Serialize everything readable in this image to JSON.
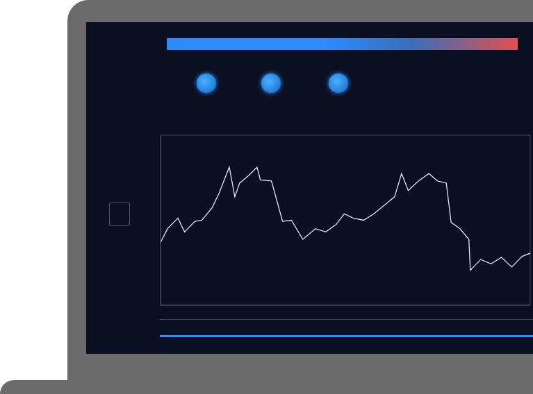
{
  "chart_data": {
    "type": "line",
    "x": [
      0,
      1.9,
      4.7,
      6.5,
      9.3,
      11.2,
      14,
      15.8,
      18.6,
      20.1,
      21.4,
      23.8,
      26.1,
      27,
      30,
      33,
      35.4,
      38.5,
      41.9,
      44.7,
      47.5,
      49.7,
      52.1,
      54.9,
      57.7,
      60.5,
      63.3,
      65.2,
      67,
      69.8,
      72.6,
      74.9,
      77.3,
      78.6,
      81,
      83.4,
      83.8,
      86.6,
      89.4,
      92.2,
      95,
      97.8,
      100
    ],
    "values": [
      2.96,
      3.6,
      4.1,
      3.45,
      3.95,
      4.0,
      4.6,
      5.26,
      6.5,
      5.1,
      5.75,
      6.1,
      6.5,
      5.9,
      5.85,
      3.95,
      4.0,
      3.1,
      3.6,
      3.45,
      3.8,
      4.3,
      4.1,
      4.0,
      4.3,
      4.7,
      5.1,
      6.2,
      5.4,
      5.85,
      6.2,
      5.85,
      5.75,
      3.9,
      3.6,
      3.1,
      1.65,
      2.15,
      1.95,
      2.25,
      1.8,
      2.3,
      2.45
    ],
    "color": "#dce8ff",
    "xlim": [
      0,
      100
    ],
    "xticks": [
      0,
      10,
      20,
      30,
      40,
      50,
      60,
      70,
      80,
      90,
      100
    ],
    "ylim": [
      0,
      8
    ],
    "yticks": [
      0,
      1,
      2,
      3,
      4,
      5,
      6,
      7,
      8
    ],
    "grid": true,
    "tick_labels": false
  }
}
